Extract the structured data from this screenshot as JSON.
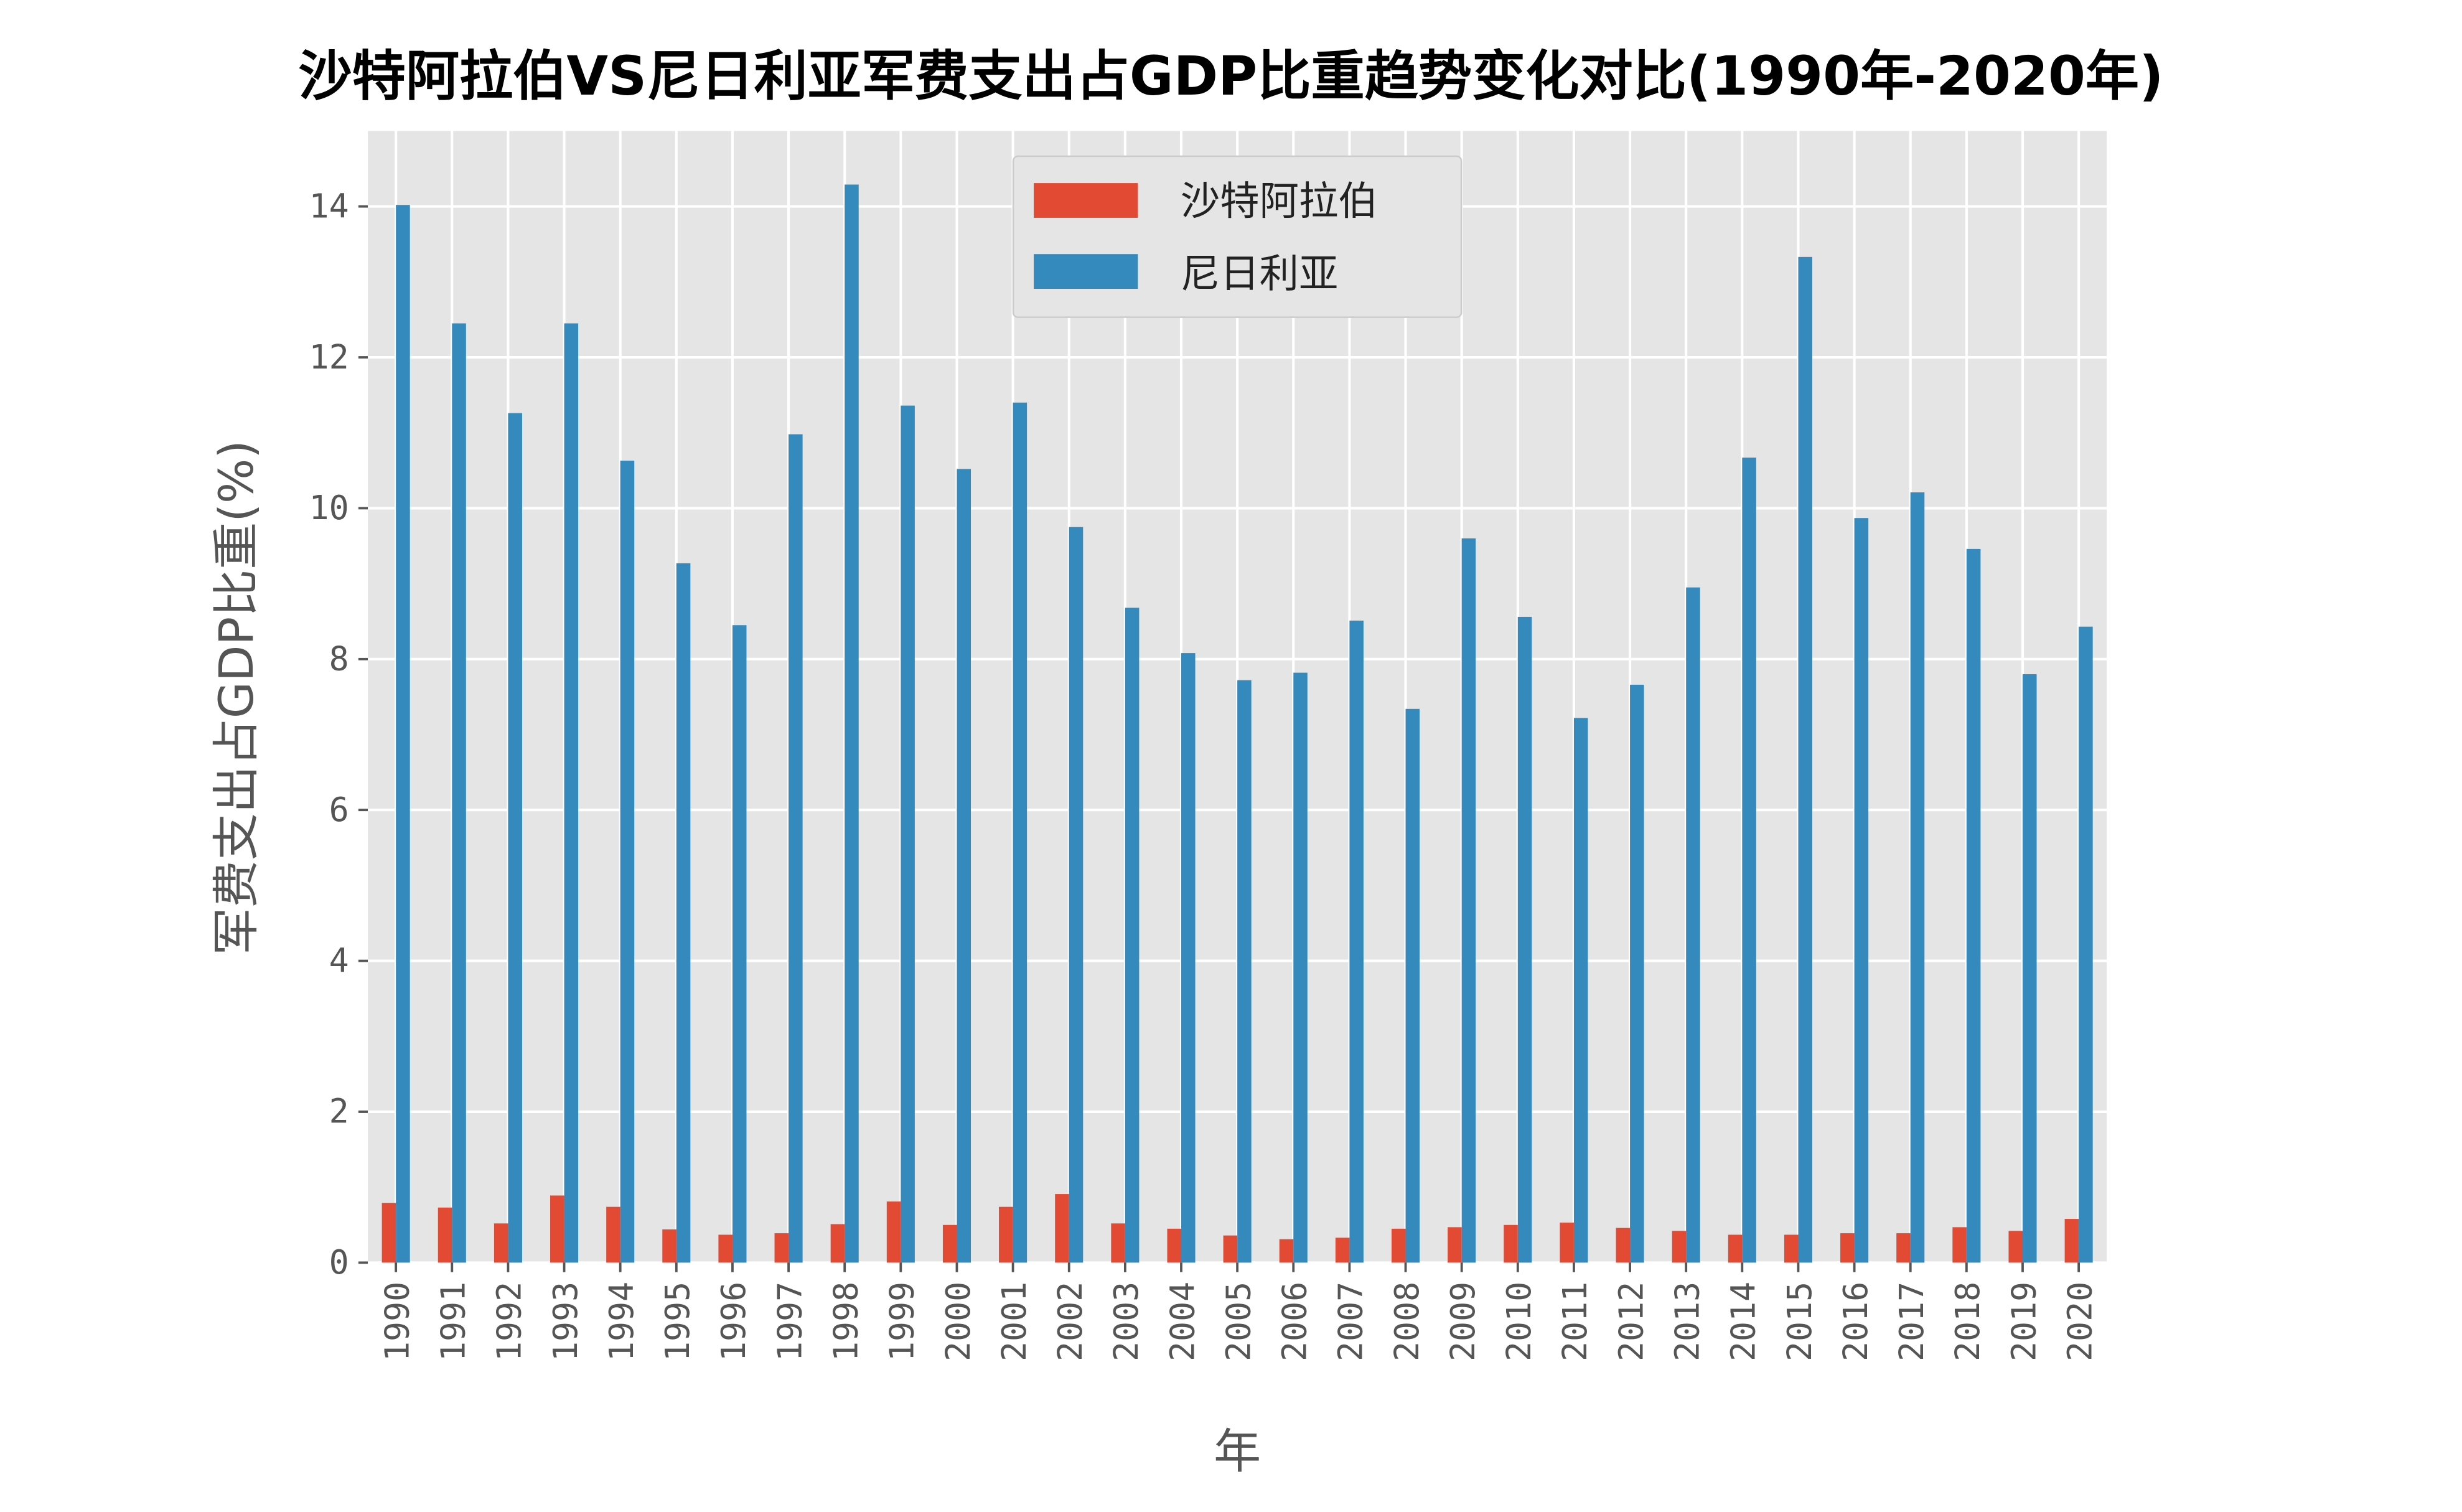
{
  "chart_data": {
    "type": "bar",
    "title": "沙特阿拉伯VS尼日利亚军费支出占GDP比重趋势变化对比(1990年-2020年)",
    "xlabel": "年",
    "ylabel": "军费支出占GDP比重(%)",
    "ylim": [
      0,
      15
    ],
    "yticks": [
      "0",
      "2",
      "4",
      "6",
      "8",
      "10",
      "12",
      "14"
    ],
    "grid": true,
    "legend_position": "top-center",
    "categories": [
      "1990",
      "1991",
      "1992",
      "1993",
      "1994",
      "1995",
      "1996",
      "1997",
      "1998",
      "1999",
      "2000",
      "2001",
      "2002",
      "2003",
      "2004",
      "2005",
      "2006",
      "2007",
      "2008",
      "2009",
      "2010",
      "2011",
      "2012",
      "2013",
      "2014",
      "2015",
      "2016",
      "2017",
      "2018",
      "2019",
      "2020"
    ],
    "series": [
      {
        "name": "沙特阿拉伯",
        "color": "#E24A33",
        "values": [
          0.79,
          0.73,
          0.52,
          0.89,
          0.74,
          0.44,
          0.37,
          0.39,
          0.51,
          0.81,
          0.5,
          0.74,
          0.91,
          0.52,
          0.45,
          0.36,
          0.31,
          0.33,
          0.45,
          0.47,
          0.5,
          0.53,
          0.46,
          0.42,
          0.37,
          0.37,
          0.39,
          0.39,
          0.47,
          0.42,
          0.58
        ]
      },
      {
        "name": "尼日利亚",
        "color": "#348ABD",
        "values": [
          14.02,
          12.45,
          11.26,
          12.45,
          10.63,
          9.27,
          8.45,
          10.98,
          14.29,
          11.36,
          10.52,
          11.4,
          9.75,
          8.68,
          8.08,
          7.72,
          7.82,
          8.51,
          7.34,
          9.6,
          8.56,
          7.22,
          7.66,
          8.95,
          10.67,
          13.33,
          9.87,
          10.21,
          9.46,
          7.8,
          8.43
        ]
      }
    ]
  }
}
